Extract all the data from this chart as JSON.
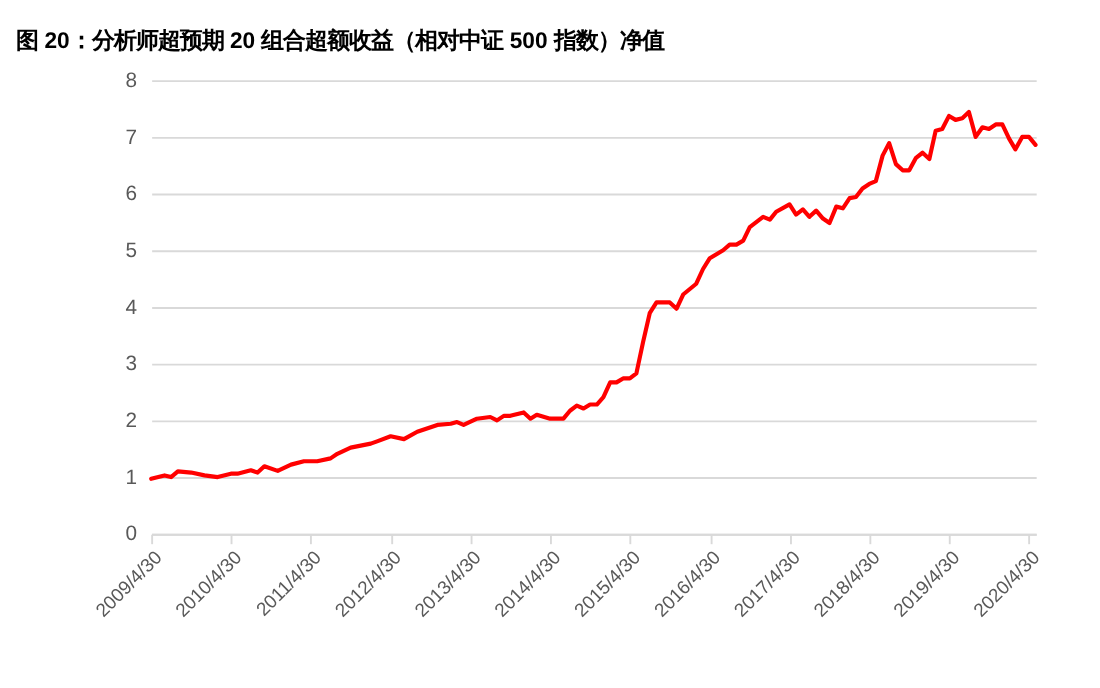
{
  "chart_data": {
    "type": "line",
    "title": "图 20：分析师超预期 20 组合超额收益（相对中证 500 指数）净值",
    "x": [
      "2009-04-30",
      "2009-06-30",
      "2009-07-30",
      "2009-08-30",
      "2009-10-30",
      "2009-12-30",
      "2010-02-28",
      "2010-04-30",
      "2010-05-30",
      "2010-07-30",
      "2010-08-30",
      "2010-09-30",
      "2010-11-30",
      "2011-01-30",
      "2011-03-30",
      "2011-05-30",
      "2011-07-30",
      "2011-08-30",
      "2011-10-30",
      "2012-01-30",
      "2012-02-28",
      "2012-04-30",
      "2012-06-30",
      "2012-08-30",
      "2012-11-30",
      "2013-01-30",
      "2013-02-28",
      "2013-03-30",
      "2013-05-30",
      "2013-07-30",
      "2013-08-30",
      "2013-09-30",
      "2013-10-30",
      "2013-12-30",
      "2014-01-30",
      "2014-02-28",
      "2014-04-30",
      "2014-06-30",
      "2014-07-30",
      "2014-08-30",
      "2014-09-30",
      "2014-10-30",
      "2014-11-30",
      "2014-12-30",
      "2015-01-30",
      "2015-02-28",
      "2015-03-30",
      "2015-04-30",
      "2015-05-30",
      "2015-06-30",
      "2015-07-30",
      "2015-08-30",
      "2015-10-30",
      "2015-11-30",
      "2015-12-30",
      "2016-02-28",
      "2016-03-30",
      "2016-04-30",
      "2016-06-30",
      "2016-07-30",
      "2016-08-30",
      "2016-09-30",
      "2016-10-30",
      "2016-12-30",
      "2017-01-30",
      "2017-02-28",
      "2017-04-30",
      "2017-05-30",
      "2017-06-30",
      "2017-07-30",
      "2017-08-30",
      "2017-09-30",
      "2017-10-30",
      "2017-11-30",
      "2017-12-30",
      "2018-01-30",
      "2018-02-28",
      "2018-03-30",
      "2018-04-30",
      "2018-05-30",
      "2018-06-30",
      "2018-07-30",
      "2018-08-30",
      "2018-09-30",
      "2018-10-30",
      "2018-11-30",
      "2018-12-30",
      "2019-01-30",
      "2019-02-28",
      "2019-03-30",
      "2019-04-30",
      "2019-05-30",
      "2019-06-30",
      "2019-07-30",
      "2019-08-30",
      "2019-09-30",
      "2019-10-30",
      "2019-11-30",
      "2019-12-30",
      "2020-01-30",
      "2020-02-28",
      "2020-03-30",
      "2020-04-30",
      "2020-05-30"
    ],
    "series": [
      {
        "color": "#ff0000",
        "values": [
          0.97,
          1.03,
          1.0,
          1.1,
          1.08,
          1.03,
          1.0,
          1.06,
          1.06,
          1.12,
          1.08,
          1.19,
          1.11,
          1.22,
          1.28,
          1.28,
          1.33,
          1.41,
          1.52,
          1.59,
          1.63,
          1.72,
          1.67,
          1.8,
          1.92,
          1.94,
          1.97,
          1.92,
          2.03,
          2.06,
          2.0,
          2.08,
          2.08,
          2.14,
          2.03,
          2.1,
          2.03,
          2.03,
          2.17,
          2.26,
          2.21,
          2.28,
          2.28,
          2.41,
          2.67,
          2.67,
          2.74,
          2.74,
          2.83,
          3.39,
          3.89,
          4.08,
          4.08,
          3.97,
          4.22,
          4.41,
          4.67,
          4.86,
          5.0,
          5.1,
          5.1,
          5.17,
          5.41,
          5.59,
          5.54,
          5.68,
          5.81,
          5.63,
          5.72,
          5.59,
          5.7,
          5.56,
          5.48,
          5.77,
          5.74,
          5.92,
          5.94,
          6.09,
          6.17,
          6.22,
          6.67,
          6.89,
          6.52,
          6.41,
          6.41,
          6.63,
          6.72,
          6.61,
          7.11,
          7.14,
          7.37,
          7.3,
          7.33,
          7.44,
          7.0,
          7.17,
          7.14,
          7.22,
          7.22,
          6.97,
          6.78,
          7.0,
          7.0,
          6.86
        ]
      }
    ],
    "xlim": [
      "2009-04-30",
      "2020-05-31"
    ],
    "xticks": [
      {
        "value": "2009-04-30",
        "label": "2009/4/30"
      },
      {
        "value": "2010-04-30",
        "label": "2010/4/30"
      },
      {
        "value": "2011-04-30",
        "label": "2011/4/30"
      },
      {
        "value": "2012-04-30",
        "label": "2012/4/30"
      },
      {
        "value": "2013-04-30",
        "label": "2013/4/30"
      },
      {
        "value": "2014-04-30",
        "label": "2014/4/30"
      },
      {
        "value": "2015-04-30",
        "label": "2015/4/30"
      },
      {
        "value": "2016-04-30",
        "label": "2016/4/30"
      },
      {
        "value": "2017-04-30",
        "label": "2017/4/30"
      },
      {
        "value": "2018-04-30",
        "label": "2018/4/30"
      },
      {
        "value": "2019-04-30",
        "label": "2019/4/30"
      },
      {
        "value": "2020-04-30",
        "label": "2020/4/30"
      }
    ],
    "ylim": [
      0,
      8
    ],
    "yticks": [
      0,
      1,
      2,
      3,
      4,
      5,
      6,
      7,
      8
    ],
    "grid": "y",
    "marker": "none",
    "line_style": "solid"
  }
}
